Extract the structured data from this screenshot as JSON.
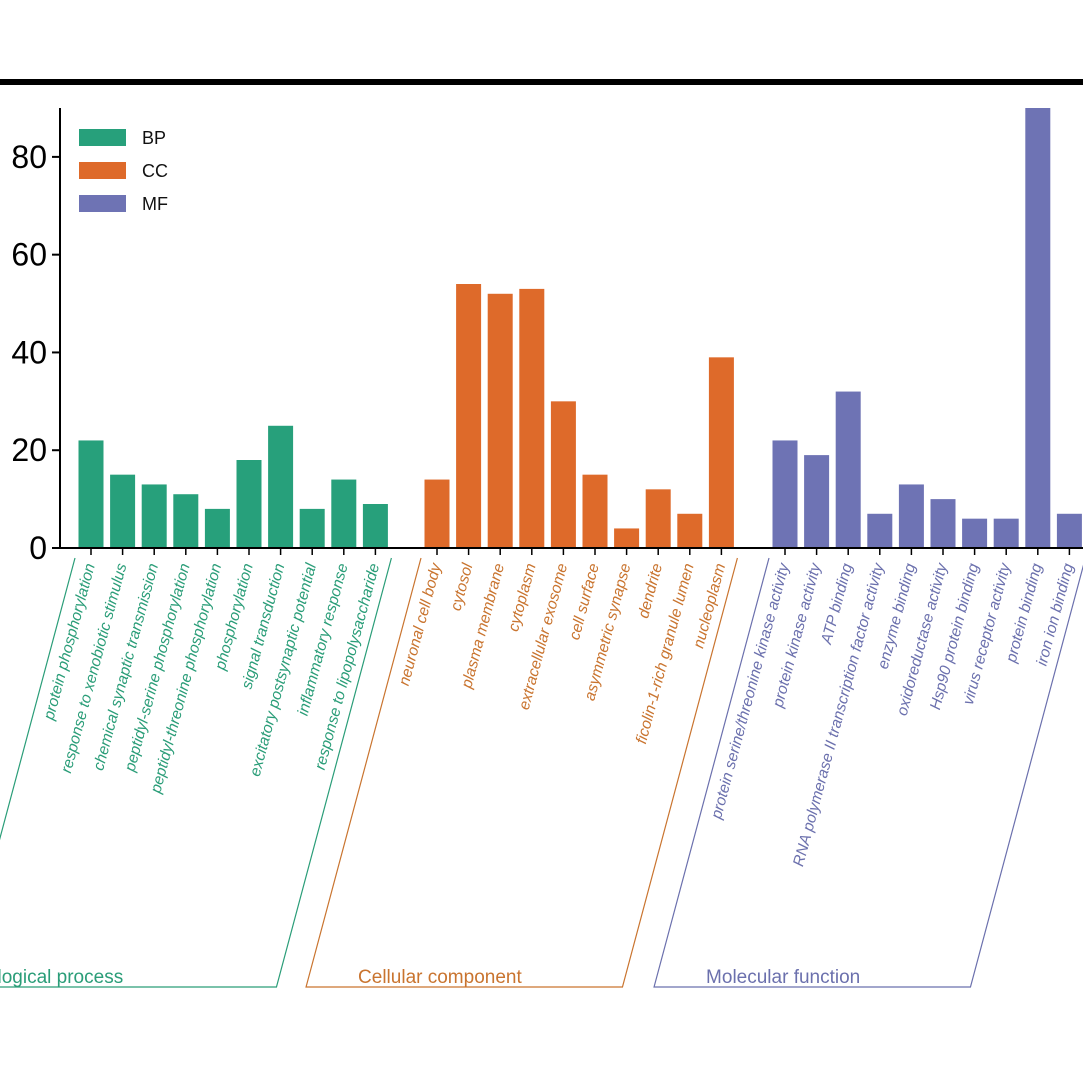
{
  "chart_data": {
    "type": "bar",
    "title": "",
    "xlabel": "",
    "ylabel": "",
    "ylim": [
      0,
      90
    ],
    "yticks": [
      0,
      20,
      40,
      60,
      80
    ],
    "ytick_labels": [
      "0",
      "20",
      "40",
      "60",
      "80"
    ],
    "grid": false,
    "legend_position": "top-left",
    "legend": [
      {
        "key": "BP",
        "label": "BP",
        "color": "#27a07b"
      },
      {
        "key": "CC",
        "label": "CC",
        "color": "#de6a2a"
      },
      {
        "key": "MF",
        "label": "MF",
        "color": "#6e73b4"
      }
    ],
    "groups": [
      {
        "key": "BP",
        "name": "Biological process",
        "color": "#27a07b",
        "text_color": "#2a9d78",
        "categories": [
          "protein phosphorylation",
          "response to xenobiotic stimulus",
          "chemical synaptic transmission",
          "peptidyl-serine phosphorylation",
          "peptidyl-threonine phosphorylation",
          "phosphorylation",
          "signal transduction",
          "excitatory postsynaptic potential",
          "inflammatory response",
          "response to lipopolysaccharide"
        ],
        "values": [
          22,
          15,
          13,
          11,
          8,
          18,
          25,
          8,
          14,
          9
        ]
      },
      {
        "key": "CC",
        "name": "Cellular component",
        "color": "#de6a2a",
        "text_color": "#c9742f",
        "categories": [
          "neuronal cell body",
          "cytosol",
          "plasma membrane",
          "cytoplasm",
          "extracellular exosome",
          "cell surface",
          "asymmetric synapse",
          "dendrite",
          "ficolin-1-rich granule lumen",
          "nucleoplasm"
        ],
        "values": [
          14,
          54,
          52,
          53,
          30,
          15,
          4,
          12,
          7,
          39
        ]
      },
      {
        "key": "MF",
        "name": "Molecular function",
        "color": "#6e73b4",
        "text_color": "#6b70ad",
        "categories": [
          "protein serine/threonine kinase activity",
          "protein kinase activity",
          "ATP binding",
          "RNA polymerase II transcription factor activity",
          "enzyme binding",
          "oxidoreductase activity",
          "Hsp90 protein binding",
          "virus receptor activity",
          "protein binding",
          "iron ion binding"
        ],
        "values": [
          22,
          19,
          32,
          7,
          13,
          10,
          6,
          6,
          90,
          7
        ]
      }
    ]
  }
}
